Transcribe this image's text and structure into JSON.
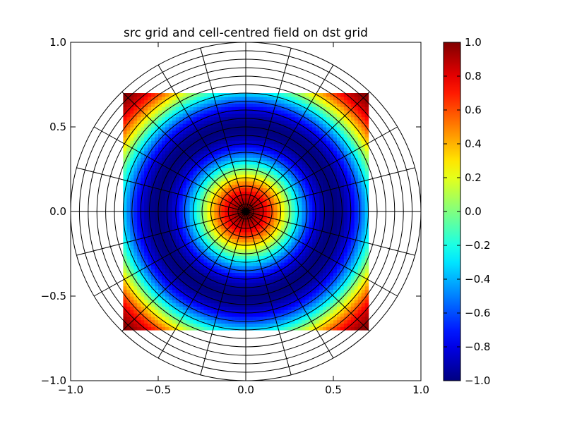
{
  "chart_data": {
    "type": "heatmap",
    "title": "src grid and cell-centred field on dst grid",
    "xlabel": "",
    "ylabel": "",
    "xlim": [
      -1.0,
      1.0
    ],
    "ylim": [
      -1.0,
      1.0
    ],
    "x_ticks": [
      -1.0,
      -0.5,
      0.0,
      0.5,
      1.0
    ],
    "y_ticks": [
      -1.0,
      -0.5,
      0.0,
      0.5,
      1.0
    ],
    "x_tick_labels": [
      "−1.0",
      "−0.5",
      "0.0",
      "0.5",
      "1.0"
    ],
    "y_tick_labels": [
      "−1.0",
      "−0.5",
      "0.0",
      "0.5",
      "1.0"
    ],
    "field": {
      "description": "value = cos(2*pi*r) where r = distance from origin, shown on square domain",
      "function": "cos(2*pi*sqrt(x^2+y^2))",
      "extent": [
        -0.7,
        0.7,
        -0.7,
        0.7
      ],
      "resolution": [
        70,
        70
      ]
    },
    "polar_grid": {
      "radii": [
        0.02,
        0.045,
        0.1,
        0.15,
        0.2,
        0.25,
        0.3,
        0.35,
        0.4,
        0.45,
        0.5,
        0.55,
        0.6,
        0.65,
        0.7,
        0.75,
        0.8,
        0.85,
        0.9,
        0.95,
        1.0
      ],
      "spoke_angles_deg": [
        0,
        15,
        30,
        45,
        60,
        75,
        90,
        105,
        120,
        135,
        150,
        165,
        180,
        195,
        210,
        225,
        240,
        255,
        270,
        285,
        300,
        315,
        330,
        345
      ],
      "spokes": 24,
      "line_color": "#000000"
    },
    "colorbar": {
      "colormap": "jet",
      "vmin": -1.0,
      "vmax": 1.0,
      "ticks": [
        1.0,
        0.8,
        0.6,
        0.4,
        0.2,
        0.0,
        -0.2,
        -0.4,
        -0.6,
        -0.8,
        -1.0
      ],
      "tick_labels": [
        "1.0",
        "0.8",
        "0.6",
        "0.4",
        "0.2",
        "0.0",
        "−0.2",
        "−0.4",
        "−0.6",
        "−0.8",
        "−1.0"
      ]
    }
  }
}
